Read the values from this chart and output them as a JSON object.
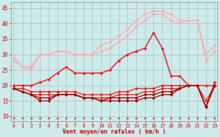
{
  "x": [
    0,
    1,
    2,
    3,
    4,
    5,
    6,
    7,
    8,
    9,
    10,
    11,
    12,
    13,
    14,
    15,
    16,
    17,
    18,
    19,
    20,
    21,
    22,
    23
  ],
  "series": [
    {
      "y": [
        29,
        26,
        26,
        30,
        30,
        31,
        31,
        30,
        30,
        30,
        33,
        34,
        36,
        38,
        41,
        43,
        44,
        44,
        43,
        41,
        41,
        41,
        30,
        33
      ],
      "color": "#ffaaaa",
      "marker": "D",
      "markersize": 2,
      "lw": 1.0
    },
    {
      "y": [
        28,
        26,
        25,
        30,
        30,
        31,
        31,
        30,
        30,
        30,
        31,
        32,
        34,
        36,
        39,
        41,
        43,
        43,
        41,
        40,
        41,
        41,
        28,
        31
      ],
      "color": "#ffaaaa",
      "marker": "D",
      "markersize": 2,
      "lw": 1.0
    },
    {
      "y": [
        20,
        20,
        20,
        21,
        22,
        24,
        26,
        24,
        24,
        24,
        24,
        25,
        28,
        30,
        31,
        32,
        37,
        32,
        23,
        23,
        20,
        20,
        13,
        21
      ],
      "color": "#ee2222",
      "marker": "D",
      "markersize": 2,
      "lw": 1.2
    },
    {
      "y": [
        19,
        19,
        18,
        18,
        18,
        18,
        18,
        18,
        17,
        17,
        17,
        17,
        18,
        18,
        19,
        19,
        19,
        20,
        20,
        20,
        20,
        20,
        20,
        20
      ],
      "color": "#ee2222",
      "marker": "D",
      "markersize": 2,
      "lw": 1.0
    },
    {
      "y": [
        19,
        18,
        17,
        17,
        17,
        17,
        17,
        17,
        16,
        16,
        16,
        16,
        17,
        17,
        17,
        18,
        18,
        19,
        19,
        19,
        20,
        20,
        15,
        20
      ],
      "color": "#ee2222",
      "marker": "D",
      "markersize": 2,
      "lw": 1.0
    },
    {
      "y": [
        19,
        18,
        17,
        16,
        16,
        17,
        17,
        17,
        16,
        16,
        15,
        16,
        16,
        16,
        16,
        17,
        17,
        18,
        18,
        19,
        20,
        20,
        13,
        20
      ],
      "color": "#aa0000",
      "marker": "D",
      "markersize": 2,
      "lw": 1.0
    },
    {
      "y": [
        19,
        18,
        17,
        15,
        15,
        17,
        17,
        17,
        16,
        16,
        15,
        15,
        15,
        15,
        15,
        16,
        16,
        17,
        17,
        19,
        20,
        20,
        13,
        20
      ],
      "color": "#aa0000",
      "marker": "D",
      "markersize": 2,
      "lw": 1.0
    }
  ],
  "background_color": "#ceeaea",
  "grid_color": "#aacccc",
  "xlabel": "Vent moyen/en rafales ( km/h )",
  "xlabel_color": "#cc0000",
  "tick_color": "#cc0000",
  "axis_color": "#888888",
  "yticks": [
    10,
    15,
    20,
    25,
    30,
    35,
    40,
    45
  ],
  "xticks": [
    0,
    1,
    2,
    3,
    4,
    5,
    6,
    7,
    8,
    9,
    10,
    11,
    12,
    13,
    14,
    15,
    16,
    17,
    18,
    19,
    20,
    21,
    22,
    23
  ],
  "ylim": [
    8.5,
    47
  ],
  "xlim": [
    -0.3,
    23.3
  ]
}
